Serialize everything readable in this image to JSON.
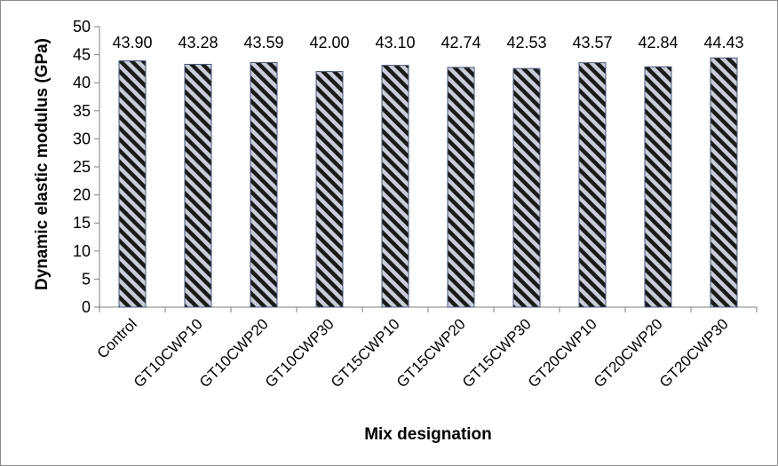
{
  "chart_data": {
    "type": "bar",
    "title": "",
    "xlabel": "Mix designation",
    "ylabel": "Dynamic elastic modulus (GPa)",
    "ylim": [
      0,
      50
    ],
    "yticks": [
      "0",
      "5",
      "10",
      "15",
      "20",
      "25",
      "30",
      "35",
      "40",
      "45",
      "50"
    ],
    "categories": [
      "Control",
      "GT10CWP10",
      "GT10CWP20",
      "GT10CWP30",
      "GT15CWP10",
      "GT15CWP20",
      "GT15CWP30",
      "GT20CWP10",
      "GT20CWP20",
      "GT20CWP30"
    ],
    "values": [
      43.9,
      43.28,
      43.59,
      42.0,
      43.1,
      42.74,
      42.53,
      43.57,
      42.84,
      44.43
    ],
    "data_labels": [
      "43.90",
      "43.28",
      "43.59",
      "42.00",
      "43.10",
      "42.74",
      "42.53",
      "43.57",
      "42.84",
      "44.43"
    ],
    "grid": false,
    "legend": "none",
    "bar_fill": "hatched",
    "colors": {
      "hatch_dark": "#1a1a1a",
      "hatch_light": "#c9cdd8",
      "bar_edge": "#4a5a78"
    }
  }
}
